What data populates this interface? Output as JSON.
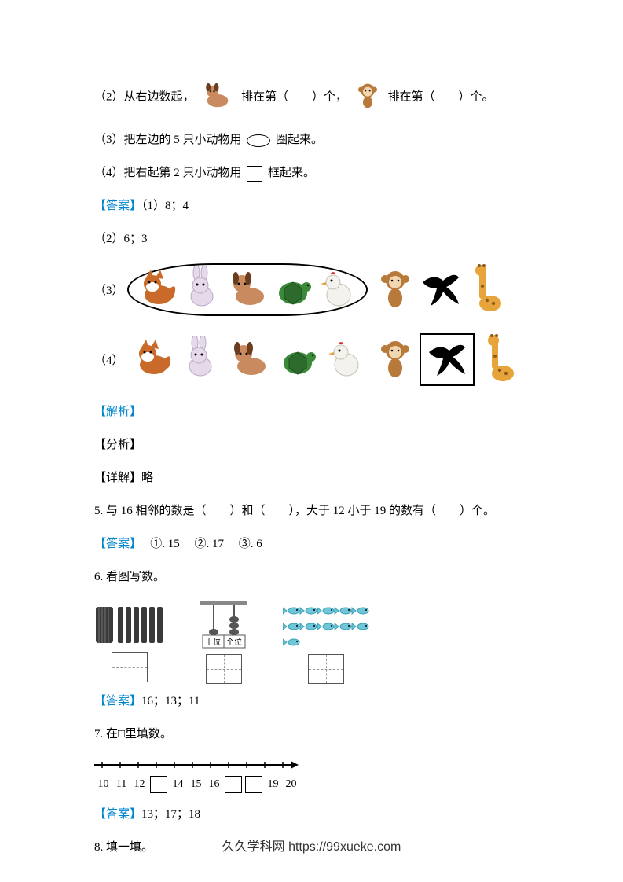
{
  "q2": {
    "prefix": "（2）从右边数起，",
    "mid": "排在第（　　）个，",
    "suffix": "排在第（　　）个。"
  },
  "q3": {
    "prefix": "（3）把左边的 5 只小动物用",
    "suffix": "圈起来。"
  },
  "q4": {
    "prefix": "（4）把右起第 2 只小动物用",
    "suffix": "框起来。"
  },
  "ans_label": "【答案】",
  "ans1": "（1）8；4",
  "ans2": "（2）6；3",
  "row3_label": "（3）",
  "row4_label": "（4）",
  "analysis_label": "【解析】",
  "fenxi": "【分析】",
  "detail": "【详解】略",
  "q5": {
    "text": "5. 与 16 相邻的数是（　　）和（　　），大于 12 小于 19 的数有（　　）个。"
  },
  "ans5": "　 ①. 15　 ②. 17　 ③. 6",
  "q6": {
    "title": "6. 看图写数。",
    "abacus_tens": "十位",
    "abacus_ones": "个位"
  },
  "ans6": "16；13；11",
  "q7": {
    "title": "7. 在□里填数。",
    "ticks": [
      "10",
      "11",
      "12",
      "",
      "14",
      "15",
      "16",
      "",
      "",
      "19",
      "20"
    ]
  },
  "ans7": "13；17；18",
  "q8": "8. 填一填。",
  "footer": "久久学科网 https://99xueke.com",
  "animals": {
    "list": [
      "fox",
      "rabbit",
      "dog",
      "turtle",
      "chicken",
      "monkey",
      "swallow",
      "giraffe"
    ],
    "colors": {
      "fox": "#c96a2a",
      "rabbit": "#e6d9e9",
      "dog": "#c98a5f",
      "turtle": "#3a8a3a",
      "chicken": "#f4f2ed",
      "monkey": "#b87a3a",
      "swallow": "#000000",
      "giraffe": "#e6a43a"
    },
    "size": 54
  },
  "answer_color": "#0086cf"
}
